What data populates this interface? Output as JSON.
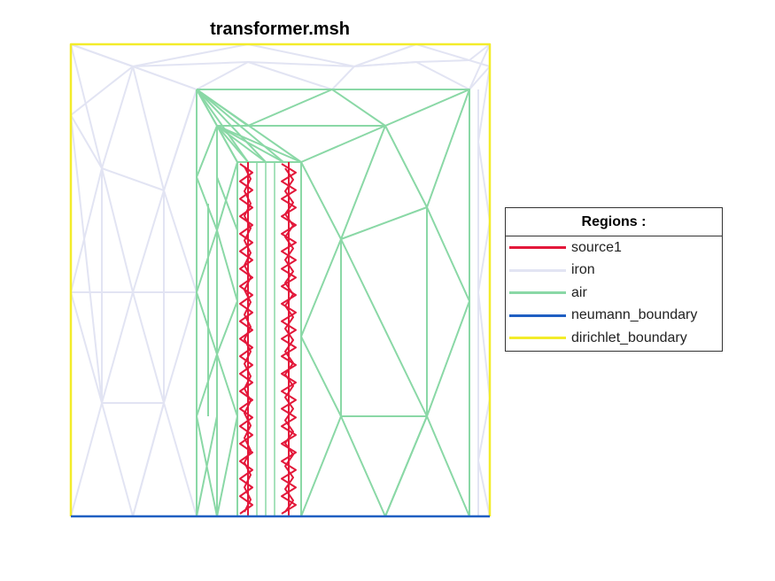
{
  "title": "transformer.msh",
  "legend": {
    "title": "Regions :",
    "entries": [
      {
        "name": "source1",
        "color": "#e3183a"
      },
      {
        "name": "iron",
        "color": "#e2e4f3"
      },
      {
        "name": "air",
        "color": "#8ad8a6"
      },
      {
        "name": "neumann_boundary",
        "color": "#1f5fc2"
      },
      {
        "name": "dirichlet_boundary",
        "color": "#f3ec2a"
      }
    ]
  },
  "regions": [
    "source1",
    "iron",
    "air",
    "neumann_boundary",
    "dirichlet_boundary"
  ]
}
